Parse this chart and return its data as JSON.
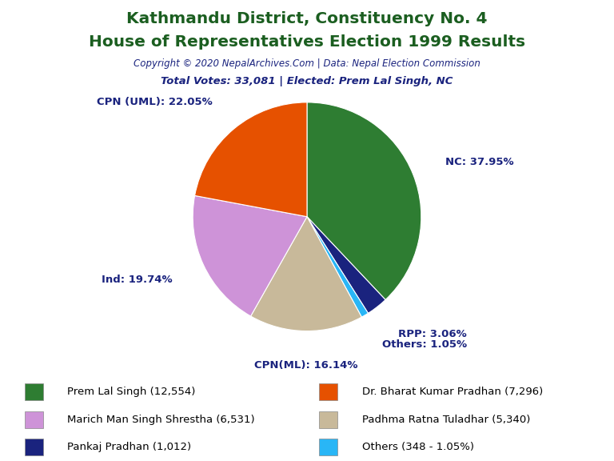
{
  "title_line1": "Kathmandu District, Constituency No. 4",
  "title_line2": "House of Representatives Election 1999 Results",
  "copyright": "Copyright © 2020 NepalArchives.Com | Data: Nepal Election Commission",
  "subtitle": "Total Votes: 33,081 | Elected: Prem Lal Singh, NC",
  "slices": [
    {
      "label": "NC",
      "value": 12554,
      "pct": "37.95",
      "color": "#2e7d32"
    },
    {
      "label": "RPP",
      "value": 1012,
      "pct": "3.06",
      "color": "#1a237e"
    },
    {
      "label": "Others",
      "value": 348,
      "pct": "1.05",
      "color": "#29b6f6"
    },
    {
      "label": "CPN(ML)",
      "value": 5340,
      "pct": "16.14",
      "color": "#c8b99a"
    },
    {
      "label": "Ind",
      "value": 6531,
      "pct": "19.74",
      "color": "#ce93d8"
    },
    {
      "label": "CPN (UML)",
      "value": 7296,
      "pct": "22.05",
      "color": "#e65100"
    }
  ],
  "legend_entries": [
    {
      "label": "Prem Lal Singh (12,554)",
      "color": "#2e7d32"
    },
    {
      "label": "Dr. Bharat Kumar Pradhan (7,296)",
      "color": "#e65100"
    },
    {
      "label": "Marich Man Singh Shrestha (6,531)",
      "color": "#ce93d8"
    },
    {
      "label": "Padhma Ratna Tuladhar (5,340)",
      "color": "#c8b99a"
    },
    {
      "label": "Pankaj Pradhan (1,012)",
      "color": "#1a237e"
    },
    {
      "label": "Others (348 - 1.05%)",
      "color": "#29b6f6"
    }
  ],
  "title_color": "#1b5e20",
  "copyright_color": "#1a237e",
  "subtitle_color": "#1a237e",
  "label_color": "#1a237e",
  "background_color": "#ffffff",
  "label_fontsize": 9.5,
  "legend_fontsize": 9.5
}
